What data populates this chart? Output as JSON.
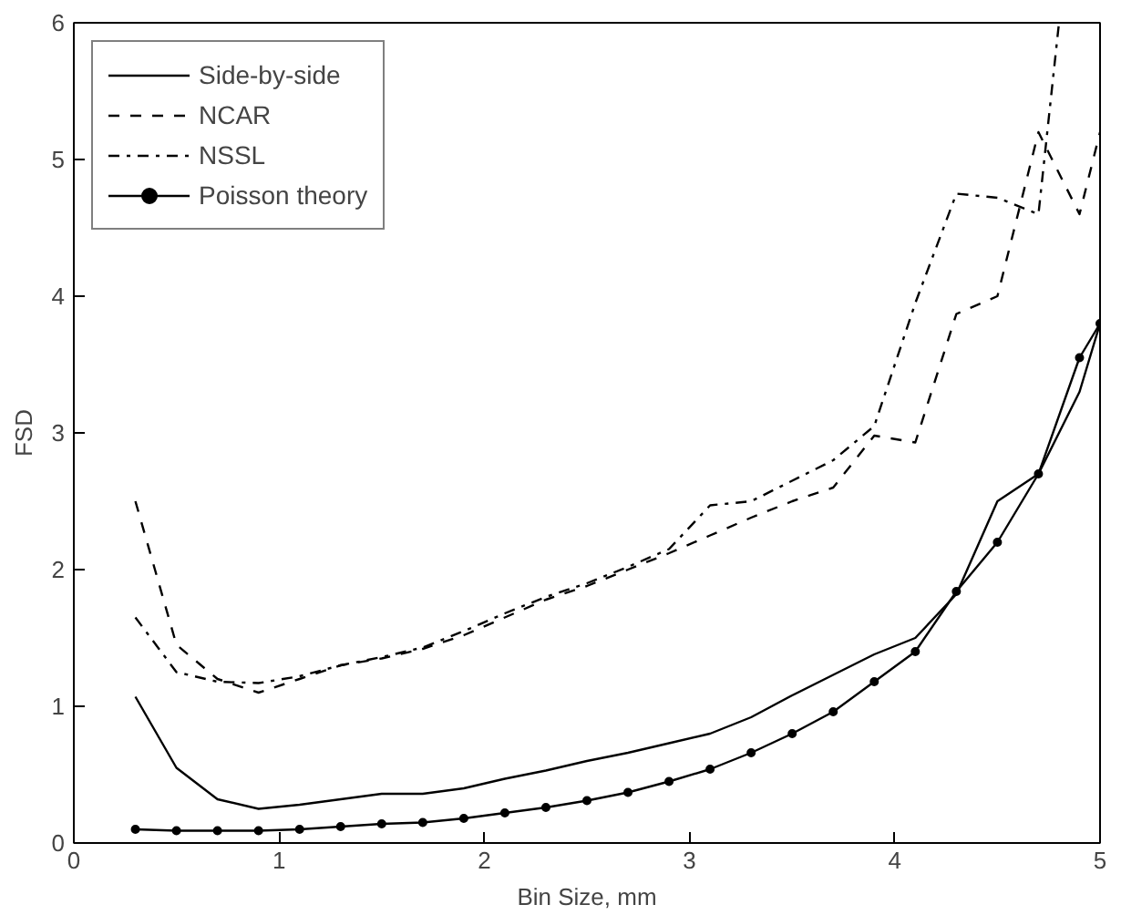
{
  "chart_data": {
    "type": "line",
    "xlabel": "Bin Size, mm",
    "ylabel": "FSD",
    "xlim": [
      0,
      5
    ],
    "ylim": [
      0,
      6
    ],
    "xticks": [
      0,
      1,
      2,
      3,
      4,
      5
    ],
    "yticks": [
      0,
      1,
      2,
      3,
      4,
      5,
      6
    ],
    "grid": false,
    "legend": "top left",
    "x": [
      0.3,
      0.5,
      0.7,
      0.9,
      1.1,
      1.3,
      1.5,
      1.7,
      1.9,
      2.1,
      2.3,
      2.5,
      2.7,
      2.9,
      3.1,
      3.3,
      3.5,
      3.7,
      3.9,
      4.1,
      4.3,
      4.5,
      4.7,
      4.9,
      5.0
    ],
    "series": [
      {
        "name": "Side-by-side",
        "color": "#000000",
        "line_style": "solid",
        "marker": "none",
        "values": [
          1.07,
          0.55,
          0.32,
          0.25,
          0.28,
          0.32,
          0.36,
          0.36,
          0.4,
          0.47,
          0.53,
          0.6,
          0.66,
          0.73,
          0.8,
          0.92,
          1.08,
          1.23,
          1.38,
          1.5,
          1.82,
          2.5,
          2.7,
          3.3,
          3.8
        ]
      },
      {
        "name": "NCAR",
        "color": "#000000",
        "line_style": "dashed",
        "marker": "none",
        "values": [
          2.5,
          1.45,
          1.2,
          1.1,
          1.2,
          1.3,
          1.35,
          1.42,
          1.52,
          1.65,
          1.78,
          1.88,
          2.0,
          2.12,
          2.25,
          2.38,
          2.5,
          2.6,
          2.98,
          2.93,
          3.87,
          4.0,
          5.2,
          4.6,
          5.2
        ]
      },
      {
        "name": "NSSL",
        "color": "#000000",
        "line_style": "dashdot",
        "marker": "none",
        "x": [
          0.3,
          0.5,
          0.7,
          0.9,
          1.1,
          1.3,
          1.5,
          1.7,
          1.9,
          2.1,
          2.3,
          2.5,
          2.7,
          2.9,
          3.1,
          3.3,
          3.5,
          3.7,
          3.9,
          4.1,
          4.3,
          4.5,
          4.7,
          4.8
        ],
        "values": [
          1.65,
          1.25,
          1.18,
          1.17,
          1.22,
          1.3,
          1.36,
          1.43,
          1.55,
          1.68,
          1.8,
          1.9,
          2.02,
          2.15,
          2.47,
          2.5,
          2.65,
          2.8,
          3.05,
          3.95,
          4.75,
          4.72,
          4.6,
          6.0
        ]
      },
      {
        "name": "Poisson theory",
        "color": "#000000",
        "line_style": "solid",
        "marker": "circle",
        "values": [
          0.1,
          0.09,
          0.09,
          0.09,
          0.1,
          0.12,
          0.14,
          0.15,
          0.18,
          0.22,
          0.26,
          0.31,
          0.37,
          0.45,
          0.54,
          0.66,
          0.8,
          0.96,
          1.18,
          1.4,
          1.84,
          2.2,
          2.7,
          3.55,
          3.8
        ]
      }
    ]
  }
}
